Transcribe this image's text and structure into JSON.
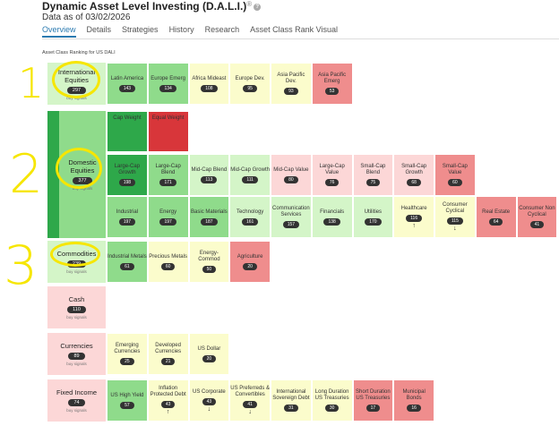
{
  "header": {
    "title": "Dynamic Asset Level Investing (D.A.L.I.)",
    "symbol": "®",
    "info_icon": "info-icon",
    "date": "Data as of 03/02/2026"
  },
  "tabs": [
    "Overview",
    "Details",
    "Strategies",
    "History",
    "Research",
    "Asset Class Rank Visual"
  ],
  "ranking_heading": "Asset Class Ranking for US DALI",
  "buy_signals_label": "buy signals",
  "annotations": [
    "1",
    "2",
    "3"
  ],
  "colors": {
    "dark_green": "#2ea84a",
    "green": "#8fdb8b",
    "light_green": "#d4f5c8",
    "yellow": "#fbfccc",
    "pink": "#fcd7d7",
    "red": "#ef8d8d",
    "dark_red": "#d8363a"
  },
  "categories": [
    {
      "name": "International Equities",
      "score": "297"
    },
    {
      "name": "Domestic Equities",
      "score": "377"
    },
    {
      "name": "Commodities",
      "score": "239"
    },
    {
      "name": "Cash",
      "score": "110"
    },
    {
      "name": "Currencies",
      "score": "89"
    },
    {
      "name": "Fixed Income",
      "score": "74"
    }
  ],
  "cards": [
    {
      "name": "Latin America",
      "score": "143"
    },
    {
      "name": "Europe Emerg",
      "score": "134"
    },
    {
      "name": "Africa Mideast",
      "score": "108"
    },
    {
      "name": "Europe Dev.",
      "score": "95"
    },
    {
      "name": "Asia Pacific Dev.",
      "score": "93"
    },
    {
      "name": "Asia Pacific Emerg",
      "score": "53"
    },
    {
      "name": "Cap Weight",
      "score": ""
    },
    {
      "name": "Equal Weight",
      "score": ""
    },
    {
      "name": "Large-Cap Growth",
      "score": "198"
    },
    {
      "name": "Large-Cap Blend",
      "score": "171"
    },
    {
      "name": "Mid-Cap Blend",
      "score": "113"
    },
    {
      "name": "Mid-Cap Growth",
      "score": "111"
    },
    {
      "name": "Mid-Cap Value",
      "score": "80"
    },
    {
      "name": "Large-Cap Value",
      "score": "76"
    },
    {
      "name": "Small-Cap Blend",
      "score": "75"
    },
    {
      "name": "Small-Cap Growth",
      "score": "68"
    },
    {
      "name": "Small-Cap Value",
      "score": "60"
    },
    {
      "name": "Industrial",
      "score": "197"
    },
    {
      "name": "Energy",
      "score": "197"
    },
    {
      "name": "Basic Materials",
      "score": "187"
    },
    {
      "name": "Technology",
      "score": "161"
    },
    {
      "name": "Communication Services",
      "score": "157"
    },
    {
      "name": "Financials",
      "score": "138"
    },
    {
      "name": "Utilities",
      "score": "170"
    },
    {
      "name": "Healthcare",
      "score": "116",
      "arrow": "↑"
    },
    {
      "name": "Consumer Cyclical",
      "score": "115",
      "arrow": "↓"
    },
    {
      "name": "Real Estate",
      "score": "64"
    },
    {
      "name": "Consumer Non Cyclical",
      "score": "41"
    },
    {
      "name": "Industrial Metals",
      "score": "61"
    },
    {
      "name": "Precious Metals",
      "score": "60"
    },
    {
      "name": "Energy-Commod",
      "score": "50"
    },
    {
      "name": "Agriculture",
      "score": "20"
    },
    {
      "name": "Emerging Currencies",
      "score": "25"
    },
    {
      "name": "Developed Currencies",
      "score": "21"
    },
    {
      "name": "US Dollar",
      "score": "20"
    },
    {
      "name": "US High Yield",
      "score": "57"
    },
    {
      "name": "Inflation Protected Debt",
      "score": "43",
      "arrow": "↑"
    },
    {
      "name": "US Corporate",
      "score": "43",
      "arrow": "↓"
    },
    {
      "name": "US Preferreds & Convertibles",
      "score": "41",
      "arrow": "↓"
    },
    {
      "name": "International Sovereign Debt",
      "score": "31"
    },
    {
      "name": "Long Duration US Treasuries",
      "score": "30"
    },
    {
      "name": "Short Duration US Treasuries",
      "score": "17"
    },
    {
      "name": "Municipal Bonds",
      "score": "16"
    }
  ]
}
